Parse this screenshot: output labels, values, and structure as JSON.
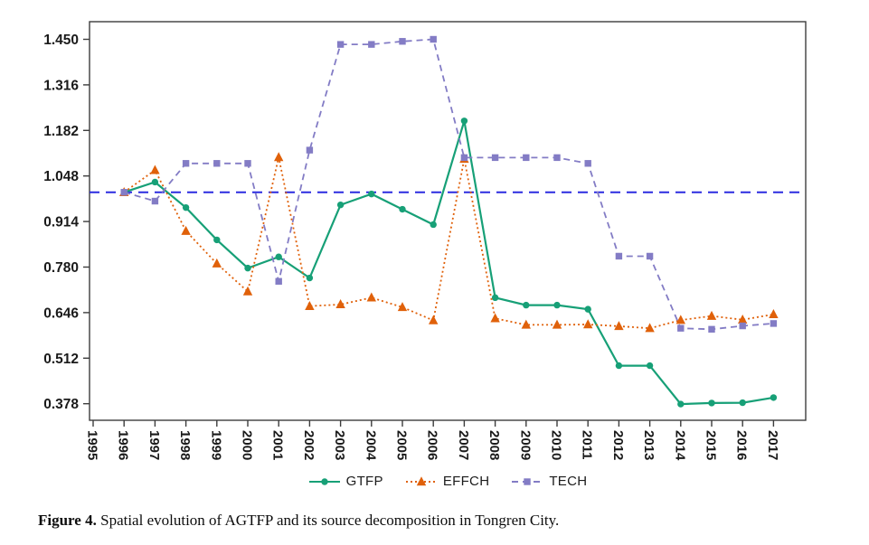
{
  "figure": {
    "caption_label": "Figure 4.",
    "caption_text": " Spatial evolution of AGTFP and its source decomposition in Tongren City."
  },
  "chart_data": {
    "type": "line",
    "title": "",
    "xlabel": "",
    "ylabel": "",
    "x": [
      1996,
      1997,
      1998,
      1999,
      2000,
      2001,
      2002,
      2003,
      2004,
      2005,
      2006,
      2007,
      2008,
      2009,
      2010,
      2011,
      2012,
      2013,
      2014,
      2015,
      2016,
      2017
    ],
    "x_axis_tick_labels": [
      "1995",
      "1996",
      "1997",
      "1998",
      "1999",
      "2000",
      "2001",
      "2002",
      "2003",
      "2004",
      "2005",
      "2006",
      "2007",
      "2008",
      "2009",
      "2010",
      "2011",
      "2012",
      "2013",
      "2014",
      "2015",
      "2016",
      "2017"
    ],
    "x_axis_tick_years": [
      1995,
      1996,
      1997,
      1998,
      1999,
      2000,
      2001,
      2002,
      2003,
      2004,
      2005,
      2006,
      2007,
      2008,
      2009,
      2010,
      2011,
      2012,
      2013,
      2014,
      2015,
      2016,
      2017
    ],
    "y_axis_tick_labels": [
      "1.450",
      "1.316",
      "1.182",
      "1.048",
      "0.914",
      "0.780",
      "0.646",
      "0.512",
      "0.378"
    ],
    "y_axis_tick_values": [
      1.45,
      1.316,
      1.182,
      1.048,
      0.914,
      0.78,
      0.646,
      0.512,
      0.378
    ],
    "ylim": [
      0.329,
      1.509
    ],
    "xlim": [
      1994.8,
      2018.1
    ],
    "grid": false,
    "legend_position": "bottom",
    "reference_line": {
      "value": 1.0,
      "color": "#2b2be0",
      "style": "long-dash"
    },
    "axis_color": "#3d3d3d",
    "tick_label_color": "#1a1a1a",
    "series": [
      {
        "name": "GTFP",
        "color": "#17a077",
        "marker": "circle",
        "line_style": "solid",
        "values": [
          1.0,
          1.03,
          0.955,
          0.86,
          0.777,
          0.81,
          0.748,
          0.963,
          0.995,
          0.95,
          0.905,
          1.21,
          0.69,
          0.668,
          0.668,
          0.656,
          0.49,
          0.49,
          0.377,
          0.38,
          0.381,
          0.396
        ]
      },
      {
        "name": "EFFCH",
        "color": "#e0610a",
        "marker": "triangle",
        "line_style": "dotted",
        "values": [
          1.0,
          1.065,
          0.886,
          0.79,
          0.708,
          1.103,
          0.665,
          0.67,
          0.69,
          0.662,
          0.623,
          1.098,
          0.629,
          0.61,
          0.61,
          0.611,
          0.606,
          0.6,
          0.624,
          0.636,
          0.625,
          0.641
        ]
      },
      {
        "name": "TECH",
        "color": "#837cc5",
        "marker": "square",
        "line_style": "dashed",
        "values": [
          1.0,
          0.974,
          1.085,
          1.085,
          1.085,
          0.738,
          1.124,
          1.435,
          1.435,
          1.444,
          1.45,
          1.102,
          1.102,
          1.102,
          1.102,
          1.085,
          0.812,
          0.812,
          0.6,
          0.597,
          0.607,
          0.614
        ]
      }
    ]
  }
}
